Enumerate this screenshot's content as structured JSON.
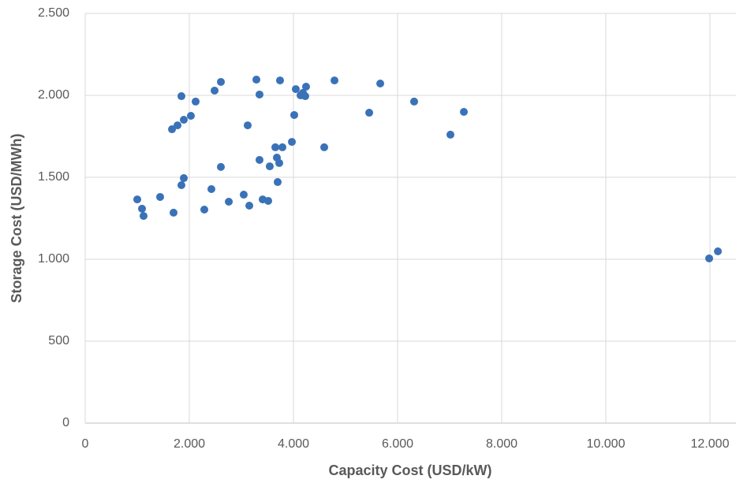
{
  "chart_data": {
    "type": "scatter",
    "x_label": "Capacity Cost (USD/kW)",
    "y_label": "Storage Cost (USD/MWh)",
    "color": "#3a72b8",
    "grid": true,
    "xlim": [
      0,
      12500
    ],
    "ylim": [
      0,
      2500
    ],
    "xticks": [
      0,
      {
        "value": 2000,
        "label": "2.000"
      },
      {
        "value": 4000,
        "label": "4.000"
      },
      {
        "value": 6000,
        "label": "6.000"
      },
      {
        "value": 8000,
        "label": "8.000"
      },
      {
        "value": 10000,
        "label": "10.000"
      },
      {
        "value": 12000,
        "label": "12.000"
      }
    ],
    "yticks": [
      0,
      500,
      {
        "value": 1000,
        "label": "1.000"
      },
      {
        "value": 1500,
        "label": "1.500"
      },
      {
        "value": 2000,
        "label": "2.000"
      },
      {
        "value": 2500,
        "label": "2.500"
      }
    ],
    "x": [
      1000,
      1091,
      1121,
      1439,
      1697,
      1667,
      1773,
      1848,
      1848,
      1894,
      1894,
      2030,
      2121,
      2288,
      2424,
      2485,
      2606,
      2606,
      2758,
      3045,
      3121,
      3152,
      3288,
      3348,
      3348,
      3409,
      3515,
      3545,
      3652,
      3682,
      3697,
      3727,
      3742,
      3788,
      3970,
      4015,
      4045,
      4136,
      4182,
      4227,
      4242,
      4591,
      4788,
      5455,
      5667,
      6318,
      7015,
      7273,
      11985,
      12152
    ],
    "values": [
      1365,
      1308,
      1264,
      1380,
      1284,
      1793,
      1817,
      1995,
      1452,
      1495,
      1851,
      1875,
      1962,
      1303,
      1428,
      2029,
      2082,
      1563,
      1351,
      1394,
      1817,
      1327,
      2096,
      2005,
      1606,
      1365,
      1356,
      1567,
      1683,
      1620,
      1471,
      1587,
      2091,
      1683,
      1716,
      1880,
      2038,
      2000,
      2015,
      1995,
      2053,
      1683,
      2091,
      1894,
      2072,
      1962,
      1760,
      1899,
      1005,
      1048
    ]
  }
}
